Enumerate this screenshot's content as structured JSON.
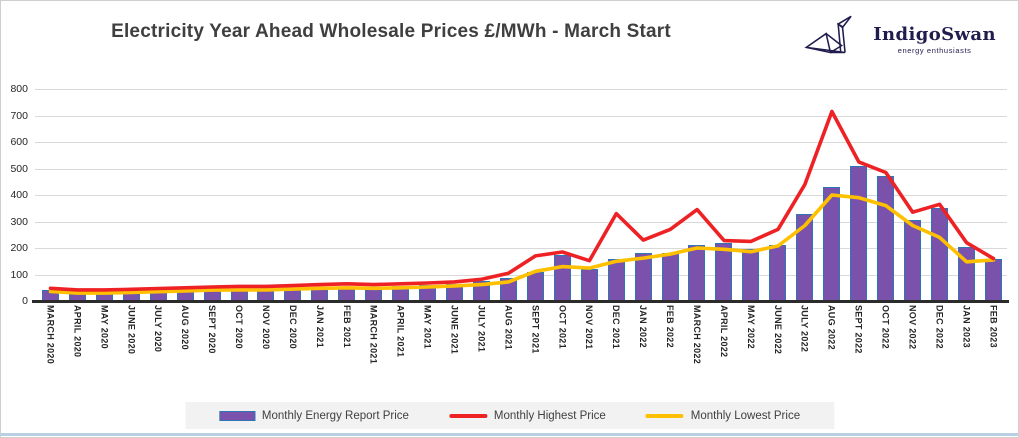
{
  "title": "Electricity Year Ahead Wholesale Prices £/MWh - March Start",
  "logo": {
    "name": "IndigoSwan",
    "tagline": "energy enthusiasts",
    "color": "#201c4e"
  },
  "colors": {
    "bar_fill": "#7b52ab",
    "bar_border": "#2e75b6",
    "highest_line": "#ee2124",
    "lowest_line": "#ffc000",
    "gridline": "#d9d9d9",
    "axis": "#2b2b2b",
    "title_text": "#3f3f3f",
    "legend_bg": "#f2f2f2",
    "bottom_rule": "#b9cfe4"
  },
  "chart_data": {
    "type": "bar",
    "title": "Electricity Year Ahead Wholesale Prices £/MWh - March Start",
    "xlabel": "",
    "ylabel": "",
    "ylim": [
      0,
      800
    ],
    "yticks": [
      800,
      700,
      600,
      500,
      400,
      300,
      200,
      100,
      0
    ],
    "grid": true,
    "legend_position": "bottom",
    "categories": [
      "MARCH 2020",
      "APRIL 2020",
      "MAY 2020",
      "JUNE 2020",
      "JULY 2020",
      "AUG 2020",
      "SEPT 2020",
      "OCT 2020",
      "NOV 2020",
      "DEC 2020",
      "JAN 2021",
      "FEB 2021",
      "MARCH 2021",
      "APRIL 2021",
      "MAY 2021",
      "JUNE 2021",
      "JULY 2021",
      "AUG 2021",
      "SEPT 2021",
      "OCT 2021",
      "NOV 2021",
      "DEC 2021",
      "JAN 2022",
      "FEB 2022",
      "MARCH 2022",
      "APRIL 2022",
      "MAY 2022",
      "JUNE 2022",
      "JULY 2022",
      "AUG 2022",
      "SEPT 2022",
      "OCT 2022",
      "NOV 2022",
      "DEC 2022",
      "JAN 2023",
      "FEB 2023"
    ],
    "series": [
      {
        "name": "Monthly Energy Report Price",
        "render": "bar",
        "color": "#7b52ab",
        "values": [
          40,
          33,
          33,
          35,
          38,
          42,
          45,
          45,
          45,
          48,
          50,
          50,
          50,
          55,
          60,
          65,
          75,
          85,
          110,
          175,
          120,
          160,
          180,
          180,
          210,
          220,
          195,
          210,
          330,
          430,
          510,
          470,
          305,
          350,
          205,
          160
        ]
      },
      {
        "name": "Monthly Highest Price",
        "render": "line",
        "color": "#ee2124",
        "values": [
          48,
          42,
          42,
          44,
          47,
          50,
          53,
          55,
          55,
          58,
          62,
          65,
          62,
          65,
          68,
          72,
          82,
          105,
          170,
          185,
          152,
          330,
          230,
          270,
          345,
          228,
          225,
          270,
          440,
          715,
          525,
          485,
          335,
          365,
          220,
          160
        ]
      },
      {
        "name": "Monthly Lowest Price",
        "render": "line",
        "color": "#ffc000",
        "values": [
          36,
          30,
          30,
          32,
          35,
          38,
          41,
          42,
          42,
          45,
          48,
          50,
          48,
          50,
          53,
          57,
          62,
          72,
          112,
          130,
          124,
          150,
          162,
          177,
          200,
          195,
          186,
          208,
          285,
          400,
          390,
          360,
          285,
          240,
          148,
          155
        ]
      }
    ]
  }
}
